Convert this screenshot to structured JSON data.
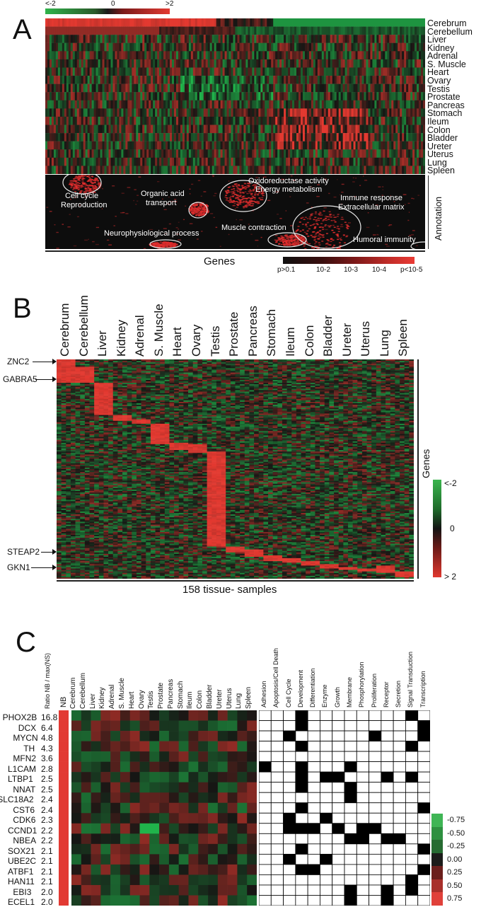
{
  "panelA": {
    "letter": "A",
    "scale_low": "<-2",
    "scale_mid": "0",
    "scale_high": ">2",
    "tissues": [
      "Cerebrum",
      "Cerebellum",
      "Liver",
      "Kidney",
      "Adrenal",
      "S. Muscle",
      "Heart",
      "Ovary",
      "Testis",
      "Prostate",
      "Pancreas",
      "Stomach",
      "Ileum",
      "Colon",
      "Bladder",
      "Ureter",
      "Uterus",
      "Lung",
      "Spleen"
    ],
    "annotation_label": "Annotation",
    "annotations": [
      "Cell cycle",
      "Reproduction",
      "Organic acid",
      "transport",
      "Oxidoreductase activity",
      "Energy metabolism",
      "Immune response",
      "Extracellular matrix",
      "Neurophysiological process",
      "Muscle contraction",
      "Humoral immunity"
    ],
    "genes_label": "Genes",
    "pvalue_labels": [
      "p>0.1",
      "10-2",
      "10-3",
      "10-4",
      "p<10-5"
    ]
  },
  "panelB": {
    "letter": "B",
    "columns": [
      "Cerebrum",
      "Cerebellum",
      "Liver",
      "Kidney",
      "Adrenal",
      "S. Muscle",
      "Heart",
      "Ovary",
      "Testis",
      "Prostate",
      "Pancreas",
      "Stomach",
      "Ileum",
      "Colon",
      "Bladder",
      "Ureter",
      "Uterus",
      "Lung",
      "Spleen"
    ],
    "gene_markers": [
      "ZNC2",
      "GABRA5",
      "STEAP2",
      "GKN1"
    ],
    "genes_label": "Genes",
    "scale_labels": [
      "<-2",
      "0",
      "> 2"
    ],
    "samples_label": "158 tissue- samples"
  },
  "panelC": {
    "letter": "C",
    "ratio_header": "Ratio NB / max(NS)",
    "nb_header": "NB",
    "tissue_headers": [
      "Cerebrum",
      "Cerebellum",
      "Liver",
      "Kidney",
      "Adrenal",
      "S. Muscle",
      "Heart",
      "Ovary",
      "Testis",
      "Prostate",
      "Pancreas",
      "Stomach",
      "Ileum",
      "Colon",
      "Bladder",
      "Ureter",
      "Uterus",
      "Lung",
      "Spleen"
    ],
    "category_headers": [
      "Adhesion",
      "Apoptosis/Cell Death",
      "Cell Cycle",
      "Development",
      "Differentiation",
      "Enzyme",
      "Growth",
      "Membrane",
      "Phosphorylation",
      "Proliferation",
      "Receptor",
      "Secretion",
      "Signal Transduction",
      "Transcription"
    ],
    "genes": [
      {
        "name": "PHOX2B",
        "ratio": "16.8"
      },
      {
        "name": "DCX",
        "ratio": "6.4"
      },
      {
        "name": "MYCN",
        "ratio": "4.8"
      },
      {
        "name": "TH",
        "ratio": "4.3"
      },
      {
        "name": "MFN2",
        "ratio": "3.6"
      },
      {
        "name": "L1CAM",
        "ratio": "2.8"
      },
      {
        "name": "LTBP1",
        "ratio": "2.5"
      },
      {
        "name": "NNAT",
        "ratio": "2.5"
      },
      {
        "name": "SLC18A2",
        "ratio": "2.4"
      },
      {
        "name": "CST6",
        "ratio": "2.4"
      },
      {
        "name": "CDK6",
        "ratio": "2.3"
      },
      {
        "name": "CCND1",
        "ratio": "2.2"
      },
      {
        "name": "NBEA",
        "ratio": "2.2"
      },
      {
        "name": "SOX21",
        "ratio": "2.1"
      },
      {
        "name": "UBE2C",
        "ratio": "2.1"
      },
      {
        "name": "ATBF1",
        "ratio": "2.1"
      },
      {
        "name": "HAN11",
        "ratio": "2.1"
      },
      {
        "name": "EBI3",
        "ratio": "2.0"
      },
      {
        "name": "ECEL1",
        "ratio": "2.0"
      }
    ],
    "category_grid": [
      [
        0,
        0,
        0,
        1,
        0,
        0,
        0,
        0,
        0,
        0,
        0,
        0,
        1,
        0
      ],
      [
        0,
        0,
        0,
        1,
        0,
        0,
        0,
        0,
        0,
        0,
        0,
        0,
        0,
        1
      ],
      [
        0,
        0,
        1,
        0,
        0,
        0,
        0,
        0,
        0,
        1,
        0,
        0,
        0,
        1
      ],
      [
        0,
        0,
        0,
        1,
        0,
        0,
        0,
        0,
        0,
        0,
        0,
        0,
        1,
        0
      ],
      [
        0,
        0,
        0,
        0,
        0,
        0,
        0,
        0,
        0,
        0,
        0,
        0,
        0,
        0
      ],
      [
        1,
        0,
        0,
        1,
        0,
        0,
        0,
        1,
        0,
        0,
        0,
        0,
        0,
        0
      ],
      [
        0,
        0,
        0,
        1,
        0,
        1,
        1,
        0,
        0,
        0,
        1,
        0,
        1,
        0
      ],
      [
        0,
        0,
        0,
        1,
        0,
        0,
        0,
        1,
        0,
        0,
        0,
        0,
        0,
        0
      ],
      [
        0,
        0,
        0,
        0,
        0,
        0,
        0,
        1,
        0,
        0,
        0,
        0,
        0,
        0
      ],
      [
        0,
        0,
        0,
        1,
        0,
        0,
        0,
        0,
        0,
        0,
        0,
        0,
        0,
        1
      ],
      [
        0,
        0,
        1,
        0,
        0,
        1,
        0,
        0,
        0,
        0,
        0,
        0,
        0,
        0
      ],
      [
        0,
        0,
        1,
        1,
        1,
        0,
        1,
        0,
        1,
        1,
        0,
        0,
        0,
        0
      ],
      [
        0,
        0,
        0,
        0,
        0,
        0,
        0,
        1,
        1,
        0,
        1,
        1,
        0,
        0
      ],
      [
        0,
        0,
        0,
        1,
        0,
        0,
        0,
        0,
        0,
        0,
        0,
        0,
        0,
        1
      ],
      [
        0,
        0,
        1,
        0,
        0,
        1,
        0,
        0,
        0,
        0,
        0,
        0,
        0,
        0
      ],
      [
        0,
        0,
        0,
        1,
        1,
        0,
        0,
        0,
        0,
        0,
        0,
        0,
        0,
        1
      ],
      [
        0,
        0,
        0,
        0,
        0,
        0,
        0,
        0,
        0,
        0,
        0,
        0,
        1,
        0
      ],
      [
        0,
        0,
        0,
        0,
        0,
        0,
        0,
        1,
        0,
        0,
        1,
        0,
        1,
        0
      ],
      [
        0,
        0,
        0,
        0,
        0,
        0,
        0,
        1,
        0,
        0,
        1,
        0,
        0,
        0
      ]
    ],
    "scale_labels": [
      "-0.75",
      "-0.50",
      "-0.25",
      "0.00",
      "0.25",
      "0.50",
      "0.75"
    ],
    "scale_colors": [
      "#3fb555",
      "#2e9040",
      "#276b32",
      "#1c1c1a",
      "#6b1f1c",
      "#a8302b",
      "#e0403a"
    ]
  }
}
